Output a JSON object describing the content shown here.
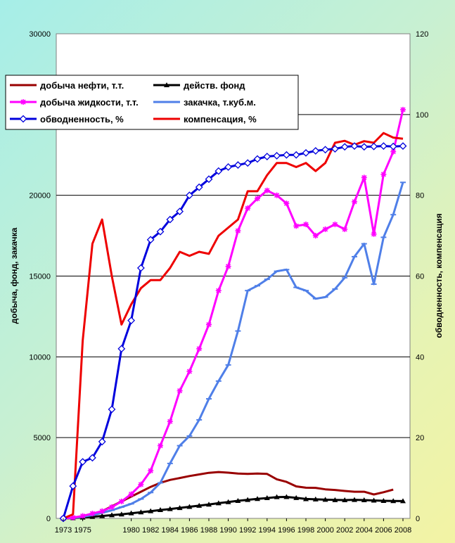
{
  "chart_data": {
    "type": "line",
    "ylabel": "добыча, фонд, закачка",
    "y2label": "обводненность, компенсация",
    "ylim": [
      0,
      30000
    ],
    "y2lim": [
      0,
      120
    ],
    "yticks": [
      0,
      5000,
      10000,
      15000,
      20000,
      25000,
      30000
    ],
    "y2ticks": [
      0,
      20,
      40,
      60,
      80,
      100,
      120
    ],
    "xlim": [
      1973,
      2008
    ],
    "xticks": [
      1973,
      1975,
      1980,
      1982,
      1984,
      1986,
      1988,
      1990,
      1992,
      1994,
      1996,
      1998,
      2000,
      2002,
      2004,
      2006,
      2008
    ],
    "grid": "horizontal",
    "legend_position": "top-left",
    "series": [
      {
        "name": "добыча нефти, т.т.",
        "axis": "left",
        "color": "#990000",
        "marker": "none",
        "x": [
          1973,
          1974,
          1975,
          1976,
          1977,
          1978,
          1979,
          1980,
          1981,
          1982,
          1983,
          1984,
          1985,
          1986,
          1987,
          1988,
          1989,
          1990,
          1991,
          1992,
          1993,
          1994,
          1995,
          1996,
          1997,
          1998,
          1999,
          2000,
          2001,
          2002,
          2003,
          2004,
          2005,
          2006,
          2007
        ],
        "y": [
          0,
          20,
          100,
          250,
          450,
          750,
          1050,
          1350,
          1650,
          1950,
          2200,
          2380,
          2500,
          2620,
          2720,
          2820,
          2870,
          2830,
          2780,
          2750,
          2780,
          2750,
          2420,
          2260,
          1980,
          1900,
          1890,
          1800,
          1760,
          1700,
          1650,
          1650,
          1480,
          1620,
          1780
        ]
      },
      {
        "name": "действ. фонд",
        "axis": "left",
        "color": "#000000",
        "marker": "triangle",
        "x": [
          1973,
          1974,
          1975,
          1976,
          1977,
          1978,
          1979,
          1980,
          1981,
          1982,
          1983,
          1984,
          1985,
          1986,
          1987,
          1988,
          1989,
          1990,
          1991,
          1992,
          1993,
          1994,
          1995,
          1996,
          1997,
          1998,
          1999,
          2000,
          2001,
          2002,
          2003,
          2004,
          2005,
          2006,
          2007,
          2008
        ],
        "y": [
          0,
          20,
          60,
          100,
          150,
          200,
          250,
          320,
          380,
          450,
          520,
          580,
          650,
          720,
          790,
          860,
          940,
          1010,
          1090,
          1150,
          1210,
          1260,
          1320,
          1330,
          1270,
          1200,
          1180,
          1160,
          1140,
          1130,
          1150,
          1130,
          1110,
          1090,
          1080,
          1070
        ]
      },
      {
        "name": "добыча жидкости, т.т.",
        "axis": "left",
        "color": "#ff00ff",
        "marker": "asterisk",
        "x": [
          1973,
          1974,
          1975,
          1976,
          1977,
          1978,
          1979,
          1980,
          1981,
          1982,
          1983,
          1984,
          1985,
          1986,
          1987,
          1988,
          1989,
          1990,
          1991,
          1992,
          1993,
          1994,
          1995,
          1996,
          1997,
          1998,
          1999,
          2000,
          2001,
          2002,
          2003,
          2004,
          2005,
          2006,
          2007,
          2008
        ],
        "y": [
          0,
          50,
          150,
          300,
          450,
          700,
          1050,
          1500,
          2100,
          2950,
          4500,
          6000,
          7900,
          9100,
          10500,
          12000,
          14100,
          15600,
          17800,
          19200,
          19800,
          20300,
          20000,
          19500,
          18100,
          18200,
          17500,
          17900,
          18200,
          17900,
          19600,
          21100,
          17600,
          21300,
          22700,
          25300
        ]
      },
      {
        "name": "закачка, т.куб.м.",
        "axis": "left",
        "color": "#4f7fe8",
        "marker": "dash",
        "x": [
          1973,
          1974,
          1975,
          1976,
          1977,
          1978,
          1979,
          1980,
          1981,
          1982,
          1983,
          1984,
          1985,
          1986,
          1987,
          1988,
          1989,
          1990,
          1991,
          1992,
          1993,
          1994,
          1995,
          1996,
          1997,
          1998,
          1999,
          2000,
          2001,
          2002,
          2003,
          2004,
          2005,
          2006,
          2007,
          2008
        ],
        "y": [
          0,
          30,
          100,
          200,
          350,
          500,
          700,
          900,
          1200,
          1600,
          2200,
          3400,
          4500,
          5100,
          6100,
          7400,
          8500,
          9500,
          11600,
          14100,
          14400,
          14800,
          15300,
          15400,
          14300,
          14100,
          13600,
          13700,
          14200,
          14900,
          16200,
          17000,
          14500,
          17400,
          18800,
          20800
        ]
      },
      {
        "name": "обводненность, %",
        "axis": "right",
        "color": "#0000dd",
        "marker": "diamond",
        "x": [
          1973,
          1974,
          1975,
          1976,
          1977,
          1978,
          1979,
          1980,
          1981,
          1982,
          1983,
          1984,
          1985,
          1986,
          1987,
          1988,
          1989,
          1990,
          1991,
          1992,
          1993,
          1994,
          1995,
          1996,
          1997,
          1998,
          1999,
          2000,
          2001,
          2002,
          2003,
          2004,
          2005,
          2006,
          2007,
          2008
        ],
        "y": [
          0,
          8,
          14,
          15,
          19,
          27,
          42,
          49,
          62,
          69,
          71,
          74,
          76,
          80,
          82,
          84,
          86,
          87,
          87.5,
          88,
          89,
          89.6,
          89.8,
          90,
          90,
          90.5,
          91,
          91.3,
          91.5,
          92,
          92.2,
          92,
          92.1,
          92.2,
          92.1,
          92.2
        ]
      },
      {
        "name": "компенсация, %",
        "axis": "right",
        "color": "#ee0000",
        "marker": "none",
        "x": [
          1973,
          1974,
          1975,
          1976,
          1977,
          1978,
          1979,
          1980,
          1981,
          1982,
          1983,
          1984,
          1985,
          1986,
          1987,
          1988,
          1989,
          1990,
          1991,
          1992,
          1993,
          1994,
          1995,
          1996,
          1997,
          1998,
          1999,
          2000,
          2001,
          2002,
          2003,
          2004,
          2005,
          2006,
          2007,
          2008
        ],
        "y": [
          0,
          1,
          44,
          68,
          74,
          60,
          48,
          53,
          57,
          59,
          59,
          62,
          66,
          65,
          66,
          65.5,
          70,
          72,
          74,
          81,
          81,
          85,
          88,
          88,
          87,
          88,
          86,
          88,
          93,
          93.5,
          92.5,
          93.4,
          93,
          95.4,
          94.3,
          94
        ]
      }
    ]
  }
}
